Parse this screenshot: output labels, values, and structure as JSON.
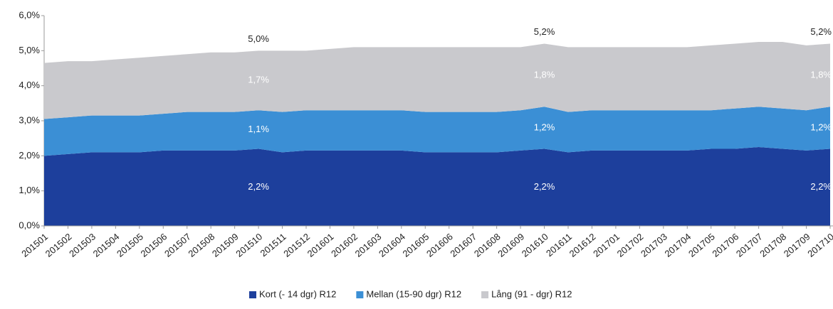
{
  "chart_data": {
    "type": "stacked_area",
    "categories": [
      "201501",
      "201502",
      "201503",
      "201504",
      "201505",
      "201506",
      "201507",
      "201508",
      "201509",
      "201510",
      "201511",
      "201512",
      "201601",
      "201602",
      "201603",
      "201604",
      "201605",
      "201606",
      "201607",
      "201608",
      "201609",
      "201610",
      "201611",
      "201612",
      "201701",
      "201702",
      "201703",
      "201704",
      "201705",
      "201706",
      "201707",
      "201708",
      "201709",
      "201710"
    ],
    "series": [
      {
        "name": "Kort (- 14 dgr) R12",
        "color": "#1d3f9c",
        "values": [
          2.0,
          2.05,
          2.1,
          2.1,
          2.1,
          2.15,
          2.15,
          2.15,
          2.15,
          2.2,
          2.1,
          2.15,
          2.15,
          2.15,
          2.15,
          2.15,
          2.1,
          2.1,
          2.1,
          2.1,
          2.15,
          2.2,
          2.1,
          2.15,
          2.15,
          2.15,
          2.15,
          2.15,
          2.2,
          2.2,
          2.25,
          2.2,
          2.15,
          2.2
        ],
        "value_labels": [
          null,
          null,
          null,
          null,
          null,
          null,
          null,
          null,
          null,
          "2,2%",
          null,
          null,
          null,
          null,
          null,
          null,
          null,
          null,
          null,
          null,
          null,
          "2,2%",
          null,
          null,
          null,
          null,
          null,
          null,
          null,
          null,
          null,
          null,
          null,
          "2,2%"
        ]
      },
      {
        "name": "Mellan (15-90 dgr) R12",
        "color": "#3b8fd5",
        "values": [
          1.05,
          1.05,
          1.05,
          1.05,
          1.05,
          1.05,
          1.1,
          1.1,
          1.1,
          1.1,
          1.15,
          1.15,
          1.15,
          1.15,
          1.15,
          1.15,
          1.15,
          1.15,
          1.15,
          1.15,
          1.15,
          1.2,
          1.15,
          1.15,
          1.15,
          1.15,
          1.15,
          1.15,
          1.1,
          1.15,
          1.15,
          1.15,
          1.15,
          1.2
        ],
        "value_labels": [
          null,
          null,
          null,
          null,
          null,
          null,
          null,
          null,
          null,
          "1,1%",
          null,
          null,
          null,
          null,
          null,
          null,
          null,
          null,
          null,
          null,
          null,
          "1,2%",
          null,
          null,
          null,
          null,
          null,
          null,
          null,
          null,
          null,
          null,
          null,
          "1,2%"
        ]
      },
      {
        "name": "Lång (91 - dgr) R12",
        "color": "#c9c9cd",
        "values": [
          1.6,
          1.6,
          1.55,
          1.6,
          1.65,
          1.65,
          1.65,
          1.7,
          1.7,
          1.7,
          1.75,
          1.7,
          1.75,
          1.8,
          1.8,
          1.8,
          1.85,
          1.85,
          1.85,
          1.85,
          1.8,
          1.8,
          1.85,
          1.8,
          1.8,
          1.8,
          1.8,
          1.8,
          1.85,
          1.85,
          1.85,
          1.9,
          1.85,
          1.8
        ],
        "value_labels": [
          null,
          null,
          null,
          null,
          null,
          null,
          null,
          null,
          null,
          "1,7%",
          null,
          null,
          null,
          null,
          null,
          null,
          null,
          null,
          null,
          null,
          null,
          "1,8%",
          null,
          null,
          null,
          null,
          null,
          null,
          null,
          null,
          null,
          null,
          null,
          "1,8%"
        ]
      }
    ],
    "annotations": [
      {
        "text": "5,0%",
        "x": "201510"
      },
      {
        "text": "5,2%",
        "x": "201610"
      },
      {
        "text": "5,2%",
        "x": "201710"
      }
    ],
    "ylim": [
      0,
      6
    ],
    "yticks": [
      {
        "value": 0,
        "label": "0,0%"
      },
      {
        "value": 1,
        "label": "1,0%"
      },
      {
        "value": 2,
        "label": "2,0%"
      },
      {
        "value": 3,
        "label": "3,0%"
      },
      {
        "value": 4,
        "label": "4,0%"
      },
      {
        "value": 5,
        "label": "5,0%"
      },
      {
        "value": 6,
        "label": "6,0%"
      }
    ],
    "legend": "bottom"
  }
}
